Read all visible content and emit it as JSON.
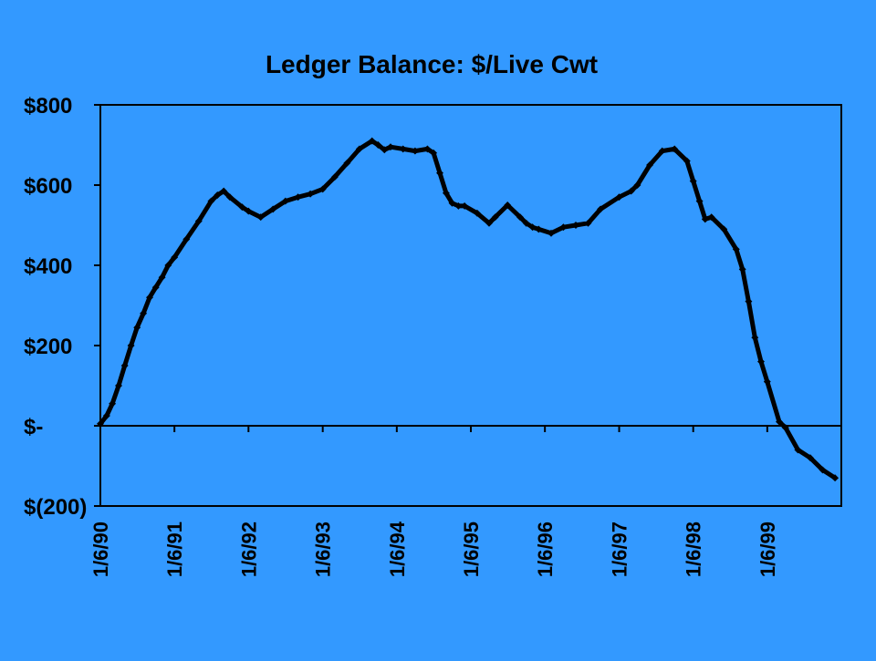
{
  "chart_data": {
    "type": "line",
    "title": "Ledger Balance: $/Live Cwt",
    "xlabel": "",
    "ylabel": "",
    "ylim": [
      -200,
      800
    ],
    "x_tick_labels": [
      "1/6/90",
      "1/6/91",
      "1/6/92",
      "1/6/93",
      "1/6/94",
      "1/6/95",
      "1/6/96",
      "1/6/97",
      "1/6/98",
      "1/6/99"
    ],
    "y_ticks": [
      {
        "value": 800,
        "label": "$800"
      },
      {
        "value": 600,
        "label": "$600"
      },
      {
        "value": 400,
        "label": "$400"
      },
      {
        "value": 200,
        "label": "$200"
      },
      {
        "value": 0,
        "label": "$-"
      },
      {
        "value": -200,
        "label": "$(200)"
      }
    ],
    "grid": false,
    "legend": "none",
    "series": [
      {
        "x": [
          "1990-01-06",
          "1990-02-06",
          "1990-03-06",
          "1990-04-06",
          "1990-05-06",
          "1990-06-06",
          "1990-07-06",
          "1990-08-06",
          "1990-09-06",
          "1990-10-06",
          "1990-11-06",
          "1990-12-06",
          "1991-01-06",
          "1991-03-06",
          "1991-05-06",
          "1991-07-06",
          "1991-08-06",
          "1991-09-06",
          "1991-10-06",
          "1991-12-06",
          "1992-01-06",
          "1992-03-06",
          "1992-05-06",
          "1992-07-06",
          "1992-09-06",
          "1992-11-06",
          "1993-01-06",
          "1993-03-06",
          "1993-05-06",
          "1993-07-06",
          "1993-09-06",
          "1993-10-06",
          "1993-11-06",
          "1993-12-06",
          "1994-02-06",
          "1994-04-06",
          "1994-06-06",
          "1994-07-06",
          "1994-08-06",
          "1994-09-06",
          "1994-10-06",
          "1994-11-06",
          "1994-12-06",
          "1995-02-06",
          "1995-04-06",
          "1995-05-06",
          "1995-07-06",
          "1995-09-06",
          "1995-10-06",
          "1995-11-06",
          "1995-12-06",
          "1996-02-06",
          "1996-04-06",
          "1996-06-06",
          "1996-08-06",
          "1996-10-06",
          "1997-01-06",
          "1997-03-06",
          "1997-04-06",
          "1997-06-06",
          "1997-08-06",
          "1997-10-06",
          "1997-12-06",
          "1998-01-06",
          "1998-02-06",
          "1998-03-06",
          "1998-04-06",
          "1998-06-06",
          "1998-08-06",
          "1998-09-06",
          "1998-10-06",
          "1998-11-06",
          "1998-12-06",
          "1999-01-06",
          "1999-03-06",
          "1999-04-06",
          "1999-06-06",
          "1999-08-06",
          "1999-10-06",
          "1999-12-06"
        ],
        "y": [
          5,
          25,
          55,
          100,
          150,
          200,
          245,
          280,
          320,
          345,
          370,
          400,
          420,
          465,
          510,
          560,
          575,
          585,
          570,
          545,
          535,
          520,
          540,
          560,
          570,
          578,
          590,
          620,
          655,
          690,
          710,
          700,
          688,
          695,
          690,
          685,
          690,
          680,
          630,
          580,
          555,
          548,
          548,
          530,
          505,
          520,
          550,
          520,
          505,
          495,
          490,
          480,
          495,
          500,
          505,
          540,
          570,
          585,
          600,
          650,
          685,
          690,
          660,
          610,
          560,
          515,
          520,
          490,
          440,
          390,
          310,
          220,
          160,
          110,
          10,
          -5,
          -60,
          -80,
          -110,
          -130
        ]
      }
    ]
  }
}
